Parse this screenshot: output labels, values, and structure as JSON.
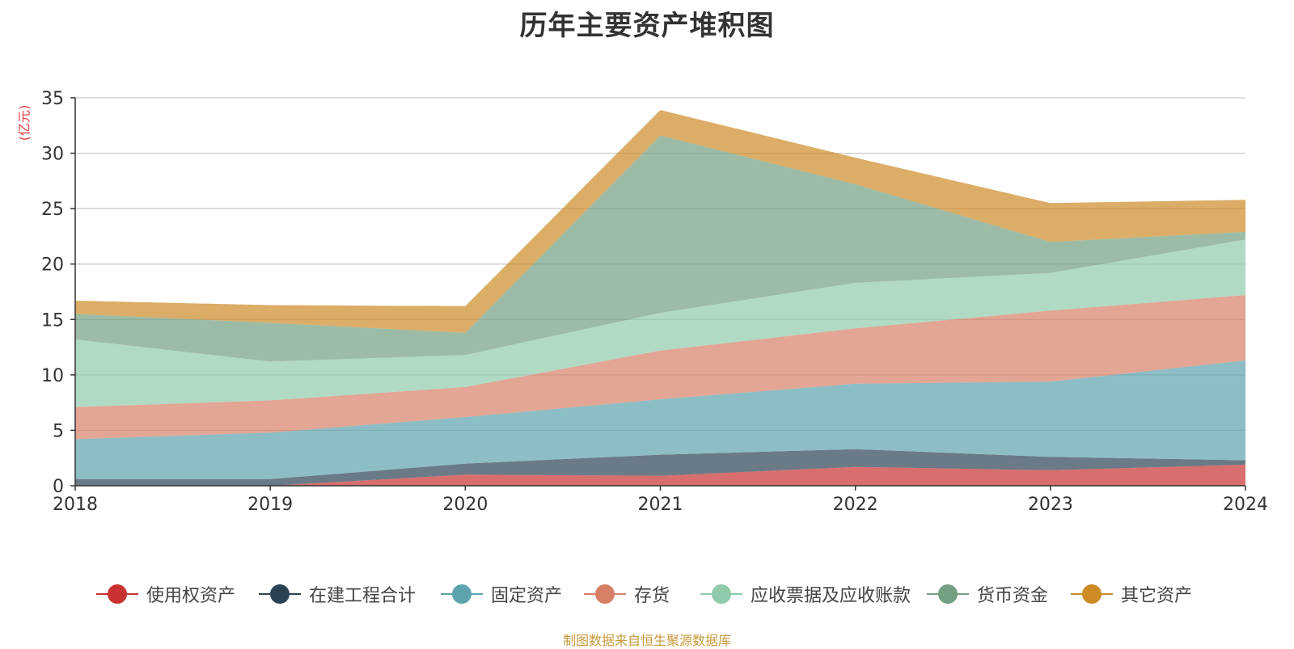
{
  "title": "历年主要资产堆积图",
  "unit_label": "(亿元)",
  "source": "制图数据来自恒生聚源数据库",
  "chart_data": {
    "type": "area",
    "stacked": true,
    "title": "历年主要资产堆积图",
    "ylabel": "(亿元)",
    "xlabel": "",
    "ylim": [
      0,
      35
    ],
    "yticks": [
      0,
      5,
      10,
      15,
      20,
      25,
      30,
      35
    ],
    "grid": true,
    "legend_position": "bottom",
    "categories": [
      "2018",
      "2019",
      "2020",
      "2021",
      "2022",
      "2023",
      "2024"
    ],
    "series": [
      {
        "name": "使用权资产",
        "color": "#c8312f",
        "values": [
          0,
          0,
          1.0,
          0.9,
          1.7,
          1.4,
          1.9
        ]
      },
      {
        "name": "在建工程合计",
        "color": "#2c4254",
        "values": [
          0.6,
          0.6,
          1.0,
          1.9,
          1.6,
          1.2,
          0.4
        ]
      },
      {
        "name": "固定资产",
        "color": "#5da3ad",
        "values": [
          3.6,
          4.2,
          4.2,
          5.0,
          5.9,
          6.8,
          9.0
        ]
      },
      {
        "name": "存货",
        "color": "#d77f66",
        "values": [
          2.9,
          2.9,
          2.7,
          4.4,
          5.0,
          6.4,
          5.9
        ]
      },
      {
        "name": "应收票据及应收账款",
        "color": "#8fcaab",
        "values": [
          6.1,
          3.5,
          2.9,
          3.4,
          4.1,
          3.4,
          5.0
        ]
      },
      {
        "name": "货币资金",
        "color": "#739f82",
        "values": [
          2.3,
          3.5,
          2.0,
          16.0,
          8.9,
          2.8,
          0.7
        ]
      },
      {
        "name": "其它资产",
        "color": "#cd8a25",
        "values": [
          1.2,
          1.6,
          2.4,
          2.3,
          2.4,
          3.5,
          2.9
        ]
      }
    ]
  }
}
